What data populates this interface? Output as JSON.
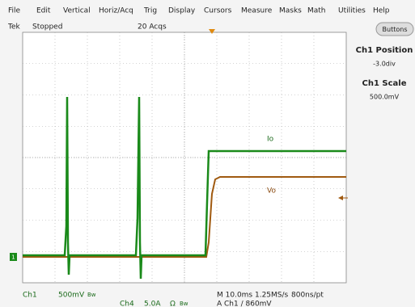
{
  "menu": [
    "File",
    "Edit",
    "Vertical",
    "Horiz/Acq",
    "Trig",
    "Display",
    "Cursors",
    "Measure",
    "Masks",
    "Math",
    "Utilities",
    "Help"
  ],
  "status": {
    "brand": "Tek",
    "state": "Stopped",
    "acqs": "20 Acqs"
  },
  "button": "Buttons",
  "panel": {
    "position_title": "Ch1 Position",
    "position_value": "-3.0div",
    "scale_title": "Ch1 Scale",
    "scale_value": "500.0mV"
  },
  "traces": {
    "io": "Io",
    "vo": "Vo",
    "ch1_marker": "1"
  },
  "readout": {
    "ch1": "Ch1",
    "ch1_scale": "500mV",
    "ch1_bw": "Bw",
    "ch4": "Ch4",
    "ch4_scale": "5.0A",
    "ch4_ohm": "Ω",
    "ch4_bw": "Bw",
    "timebase": "M 10.0ms 1.25MS/s",
    "resolution": "800ns/pt",
    "trigger": "A  Ch1  ∕  860mV"
  }
}
